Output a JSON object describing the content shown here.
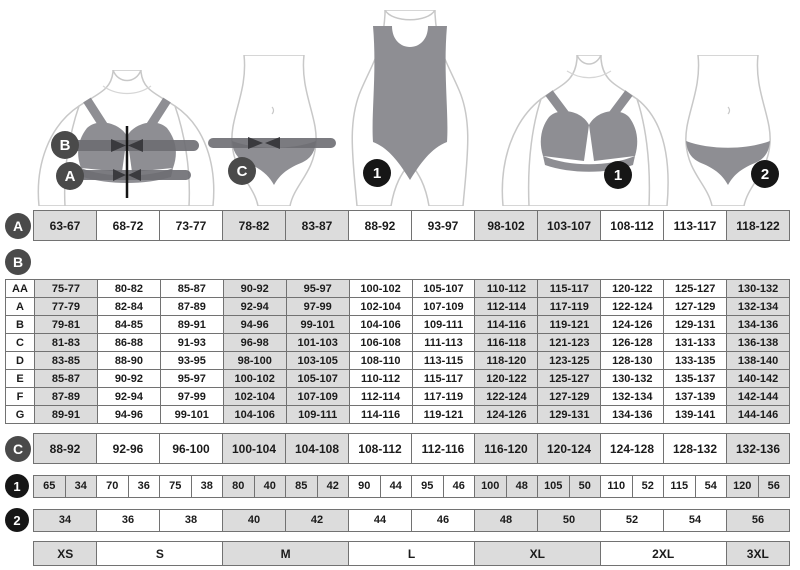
{
  "figures": {
    "bra_measure": {
      "label_b": "B",
      "label_a": "A"
    },
    "briefs_measure": {
      "label_c": "C"
    },
    "swimsuit": {
      "badge": "1"
    },
    "bra": {
      "badge": "1"
    },
    "briefs": {
      "badge": "2"
    }
  },
  "size_chart": {
    "row_a": {
      "label": "A",
      "cells": [
        "63-67",
        "68-72",
        "73-77",
        "78-82",
        "83-87",
        "88-92",
        "93-97",
        "98-102",
        "103-107",
        "108-112",
        "113-117",
        "118-122"
      ]
    },
    "section_b": {
      "label": "B",
      "rows": [
        {
          "label": "AA",
          "cells": [
            "75-77",
            "80-82",
            "85-87",
            "90-92",
            "95-97",
            "100-102",
            "105-107",
            "110-112",
            "115-117",
            "120-122",
            "125-127",
            "130-132"
          ]
        },
        {
          "label": "A",
          "cells": [
            "77-79",
            "82-84",
            "87-89",
            "92-94",
            "97-99",
            "102-104",
            "107-109",
            "112-114",
            "117-119",
            "122-124",
            "127-129",
            "132-134"
          ]
        },
        {
          "label": "B",
          "cells": [
            "79-81",
            "84-85",
            "89-91",
            "94-96",
            "99-101",
            "104-106",
            "109-111",
            "114-116",
            "119-121",
            "124-126",
            "129-131",
            "134-136"
          ]
        },
        {
          "label": "C",
          "cells": [
            "81-83",
            "86-88",
            "91-93",
            "96-98",
            "101-103",
            "106-108",
            "111-113",
            "116-118",
            "121-123",
            "126-128",
            "131-133",
            "136-138"
          ]
        },
        {
          "label": "D",
          "cells": [
            "83-85",
            "88-90",
            "93-95",
            "98-100",
            "103-105",
            "108-110",
            "113-115",
            "118-120",
            "123-125",
            "128-130",
            "133-135",
            "138-140"
          ]
        },
        {
          "label": "E",
          "cells": [
            "85-87",
            "90-92",
            "95-97",
            "100-102",
            "105-107",
            "110-112",
            "115-117",
            "120-122",
            "125-127",
            "130-132",
            "135-137",
            "140-142"
          ]
        },
        {
          "label": "F",
          "cells": [
            "87-89",
            "92-94",
            "97-99",
            "102-104",
            "107-109",
            "112-114",
            "117-119",
            "122-124",
            "127-129",
            "132-134",
            "137-139",
            "142-144"
          ]
        },
        {
          "label": "G",
          "cells": [
            "89-91",
            "94-96",
            "99-101",
            "104-106",
            "109-111",
            "114-116",
            "119-121",
            "124-126",
            "129-131",
            "134-136",
            "139-141",
            "144-146"
          ]
        }
      ]
    },
    "row_c": {
      "label": "C",
      "cells": [
        "88-92",
        "92-96",
        "96-100",
        "100-104",
        "104-108",
        "108-112",
        "112-116",
        "116-120",
        "120-124",
        "124-128",
        "128-132",
        "132-136"
      ]
    },
    "row_1": {
      "label": "1",
      "cells": [
        "65",
        "34",
        "70",
        "36",
        "75",
        "38",
        "80",
        "40",
        "85",
        "42",
        "90",
        "44",
        "95",
        "46",
        "100",
        "48",
        "105",
        "50",
        "110",
        "52",
        "115",
        "54",
        "120",
        "56"
      ]
    },
    "row_2": {
      "label": "2",
      "cells": [
        "34",
        "36",
        "38",
        "40",
        "42",
        "44",
        "46",
        "48",
        "50",
        "52",
        "54",
        "56"
      ]
    },
    "sizes": [
      {
        "label": "XS",
        "span": 1
      },
      {
        "label": "S",
        "span": 2
      },
      {
        "label": "M",
        "span": 2
      },
      {
        "label": "L",
        "span": 2
      },
      {
        "label": "XL",
        "span": 2
      },
      {
        "label": "2XL",
        "span": 2
      },
      {
        "label": "3XL",
        "span": 1
      }
    ]
  },
  "colors": {
    "cell_shaded": "#dcdcdc",
    "cell_white": "#ffffff",
    "table_border": "#727272",
    "circle_gray": "#4a4a4a",
    "circle_black": "#161616",
    "garment_gray": "#8e8e93",
    "band_gray": "#6d6d72",
    "arrow_dark": "#3a3a3e",
    "body_outline": "#c8c8c8"
  }
}
